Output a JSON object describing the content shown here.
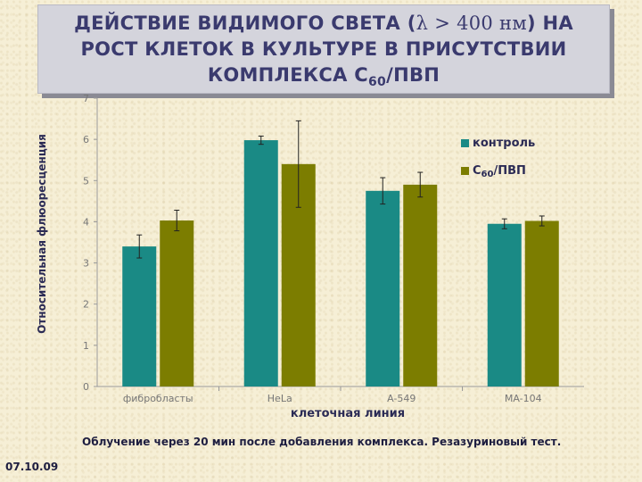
{
  "title": {
    "line1_before": "ДЕЙСТВИЕ ВИДИМОГО СВЕТА (",
    "lambda": "λ > 400 нм",
    "line1_after": ") НА",
    "line2": "РОСТ КЛЕТОК В КУЛЬТУРЕ В ПРИСУТСТВИИ",
    "line3_before": "КОМПЛЕКСА С",
    "line3_sub": "60",
    "line3_after": "/ПВП"
  },
  "footnote": "Облучение через 20 мин после добавления комплекса. Резазуриновый тест.",
  "date": "07.10.09",
  "colors": {
    "control": "#1a8a85",
    "complex": "#7c7d00",
    "axis": "#9a9a9a",
    "text": "#2b2b55"
  },
  "chart_data": {
    "type": "bar",
    "xlabel": "клеточная линия",
    "ylabel": "Относительная флюоресценция",
    "ylim": [
      0,
      7
    ],
    "yticks": [
      0,
      1,
      2,
      3,
      4,
      5,
      6,
      7
    ],
    "categories": [
      "фибробласты",
      "HeLa",
      "A-549",
      "MA-104"
    ],
    "series": [
      {
        "name": "контроль",
        "values": [
          3.4,
          5.98,
          4.75,
          3.95
        ],
        "errors": [
          0.28,
          0.1,
          0.32,
          0.12
        ],
        "color": "#1a8a85"
      },
      {
        "name_main": "С",
        "name_sub": "60",
        "name_after": "/ПВП",
        "values": [
          4.03,
          5.4,
          4.9,
          4.02
        ],
        "errors": [
          0.25,
          1.05,
          0.3,
          0.12
        ],
        "color": "#7c7d00"
      }
    ],
    "legend_position": "right"
  }
}
